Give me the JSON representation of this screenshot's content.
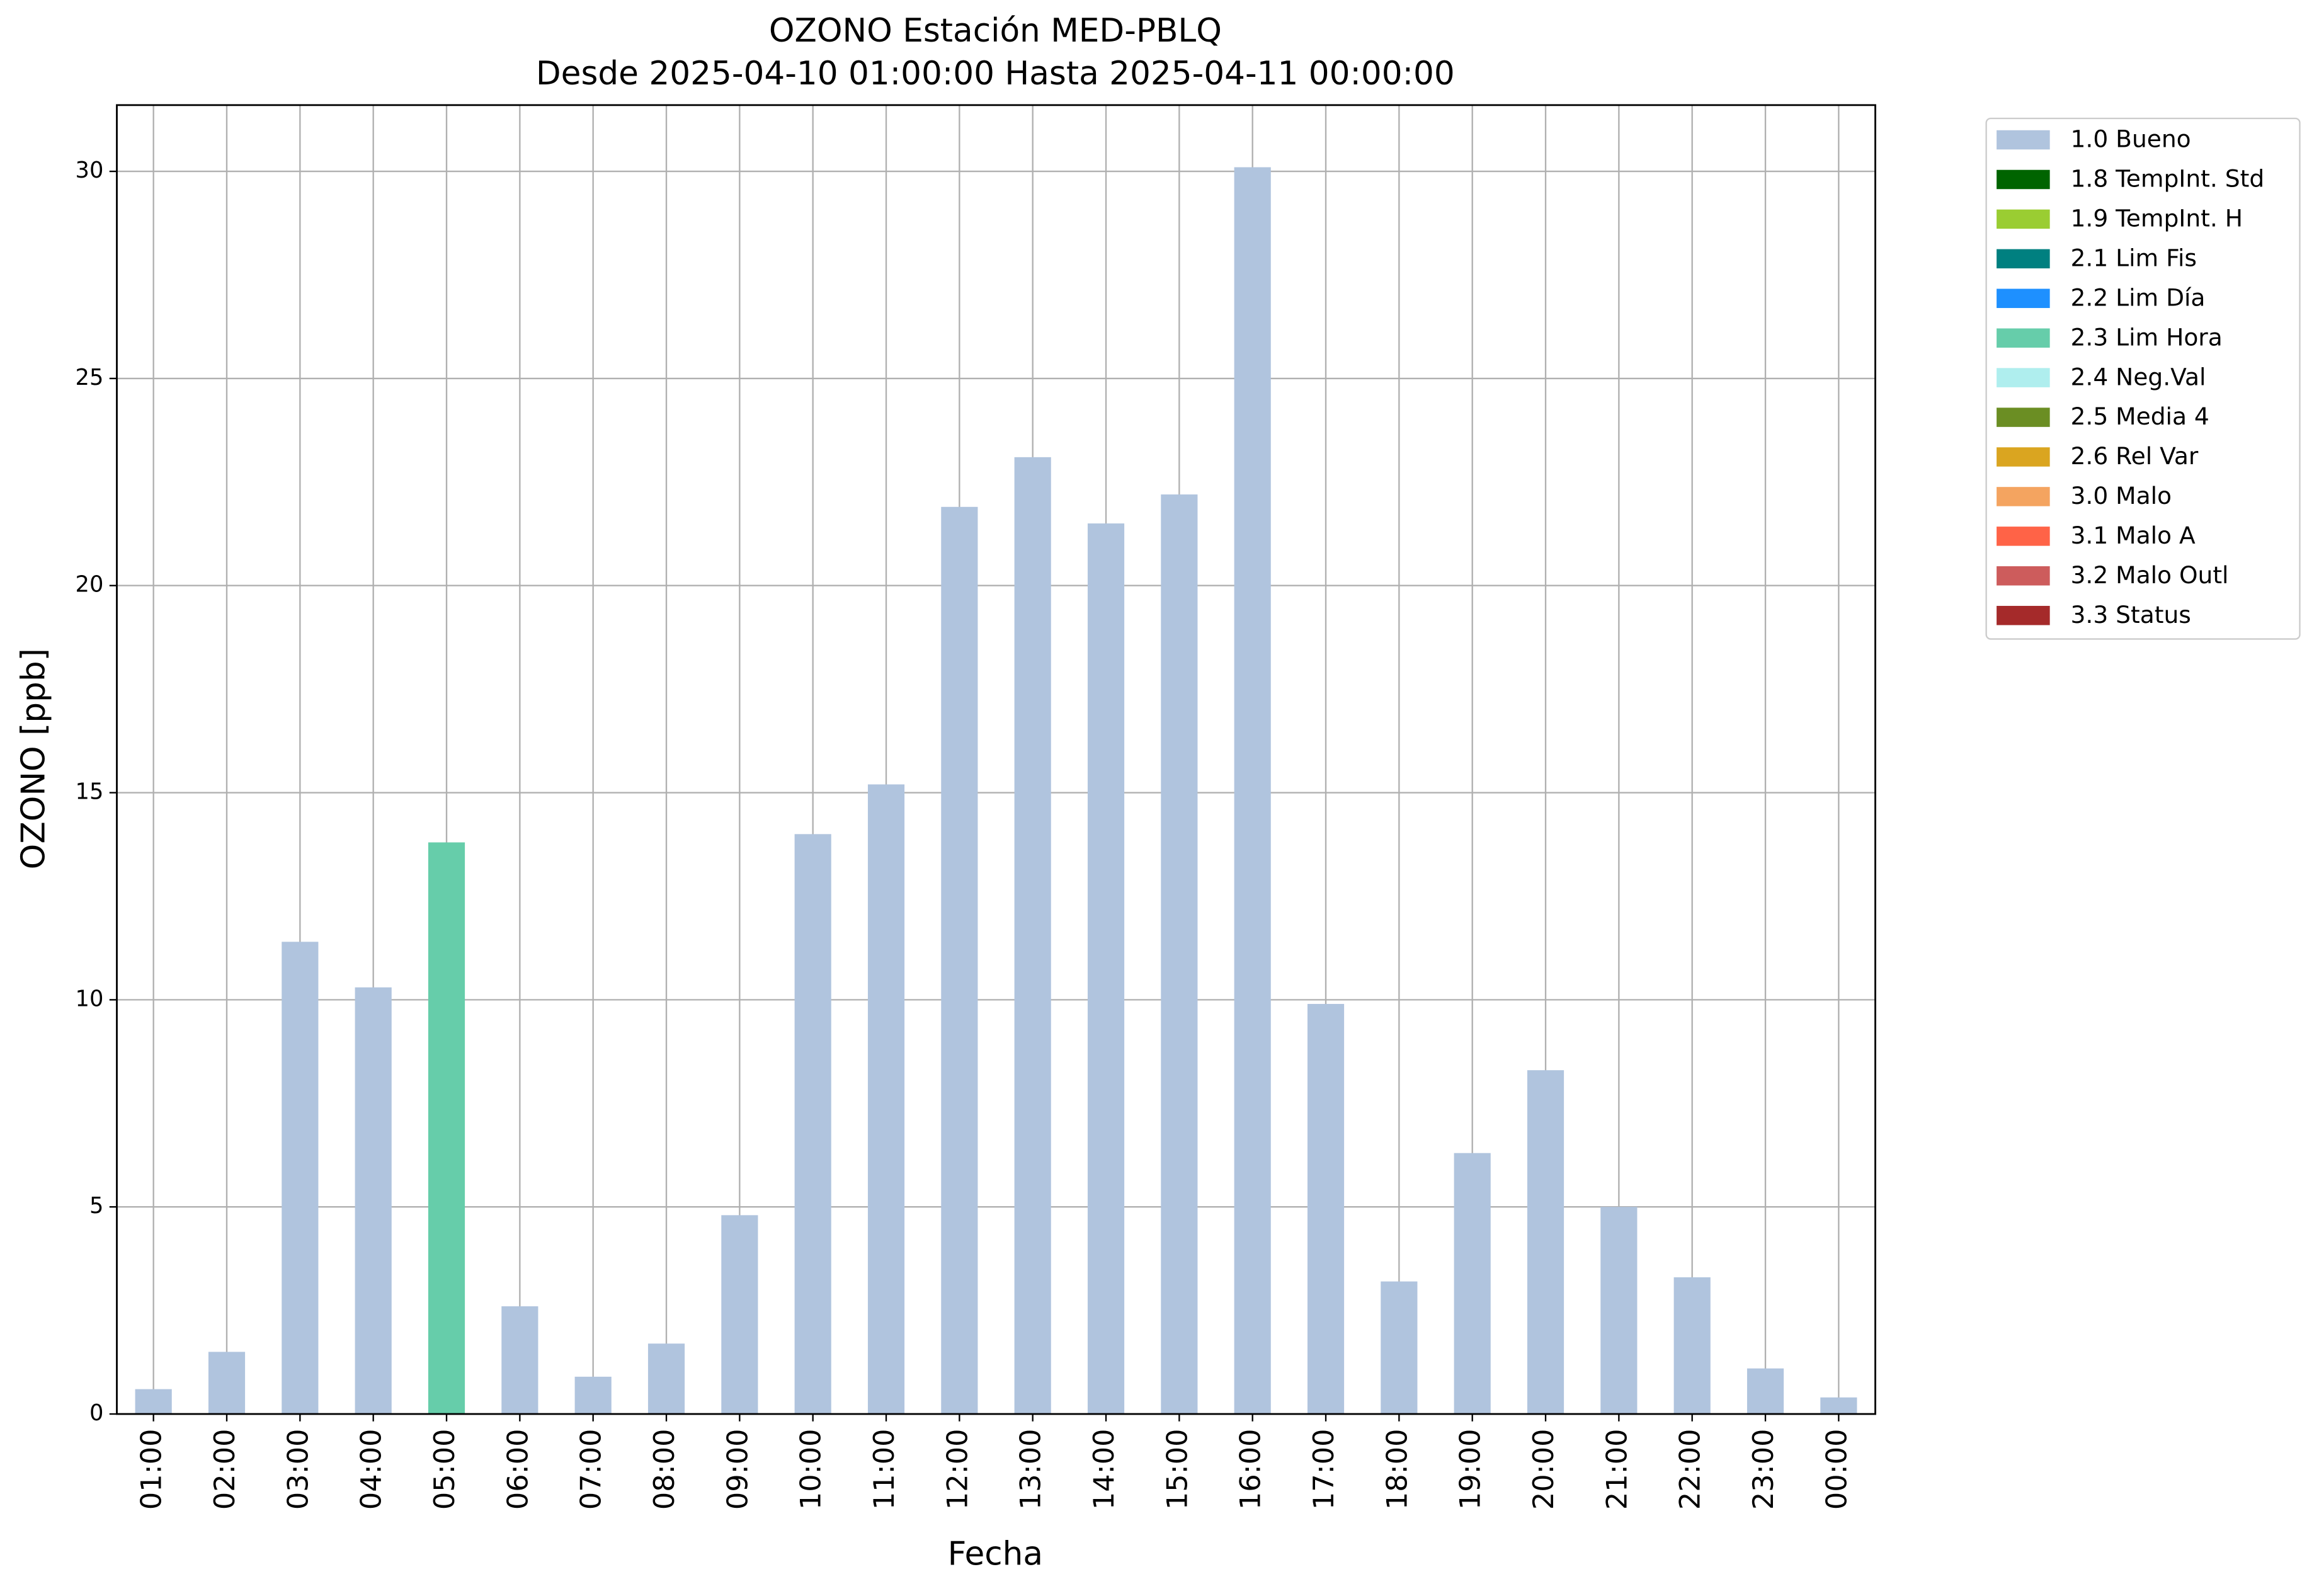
{
  "chart_data": {
    "type": "bar",
    "stacked": true,
    "title": "OZONO Estación MED-PBLQ",
    "subtitle": "Desde 2025-04-10 01:00:00 Hasta 2025-04-11 00:00:00",
    "x_label": "Fecha",
    "y_label": "OZONO [ppb]",
    "categories": [
      "01:00",
      "02:00",
      "03:00",
      "04:00",
      "05:00",
      "06:00",
      "07:00",
      "08:00",
      "09:00",
      "10:00",
      "11:00",
      "12:00",
      "13:00",
      "14:00",
      "15:00",
      "16:00",
      "17:00",
      "18:00",
      "19:00",
      "20:00",
      "21:00",
      "22:00",
      "23:00",
      "00:00"
    ],
    "series": [
      {
        "name": "1.0 Bueno",
        "color": "#b0c4de",
        "values": [
          0.6,
          1.5,
          11.4,
          10.3,
          null,
          2.6,
          0.9,
          1.7,
          4.8,
          14,
          15.2,
          21.9,
          23.1,
          21.5,
          22.2,
          30.1,
          9.9,
          3.2,
          6.3,
          8.3,
          5,
          3.3,
          1.1,
          0.4
        ]
      },
      {
        "name": "1.8 TempInt. Std",
        "color": "#006400",
        "values": [
          null,
          null,
          null,
          null,
          null,
          null,
          null,
          null,
          null,
          null,
          null,
          null,
          null,
          null,
          null,
          null,
          null,
          null,
          null,
          null,
          null,
          null,
          null,
          null
        ]
      },
      {
        "name": "1.9 TempInt. H",
        "color": "#9acd32",
        "values": [
          null,
          null,
          null,
          null,
          null,
          null,
          null,
          null,
          null,
          null,
          null,
          null,
          null,
          null,
          null,
          null,
          null,
          null,
          null,
          null,
          null,
          null,
          null,
          null
        ]
      },
      {
        "name": "2.1 Lim Fis",
        "color": "#008080",
        "values": [
          null,
          null,
          null,
          null,
          null,
          null,
          null,
          null,
          null,
          null,
          null,
          null,
          null,
          null,
          null,
          null,
          null,
          null,
          null,
          null,
          null,
          null,
          null,
          null
        ]
      },
      {
        "name": "2.2 Lim Día",
        "color": "#1e90ff",
        "values": [
          null,
          null,
          null,
          null,
          null,
          null,
          null,
          null,
          null,
          null,
          null,
          null,
          null,
          null,
          null,
          null,
          null,
          null,
          null,
          null,
          null,
          null,
          null,
          null
        ]
      },
      {
        "name": "2.3 Lim Hora",
        "color": "#66cdaa",
        "values": [
          null,
          null,
          null,
          null,
          13.8,
          null,
          null,
          null,
          null,
          null,
          null,
          null,
          null,
          null,
          null,
          null,
          null,
          null,
          null,
          null,
          null,
          null,
          null,
          null
        ]
      },
      {
        "name": "2.4 Neg.Val",
        "color": "#afeeee",
        "values": [
          null,
          null,
          null,
          null,
          null,
          null,
          null,
          null,
          null,
          null,
          null,
          null,
          null,
          null,
          null,
          null,
          null,
          null,
          null,
          null,
          null,
          null,
          null,
          null
        ]
      },
      {
        "name": "2.5 Media 4",
        "color": "#6b8e23",
        "values": [
          null,
          null,
          null,
          null,
          null,
          null,
          null,
          null,
          null,
          null,
          null,
          null,
          null,
          null,
          null,
          null,
          null,
          null,
          null,
          null,
          null,
          null,
          null,
          null
        ]
      },
      {
        "name": "2.6 Rel Var",
        "color": "#daa520",
        "values": [
          null,
          null,
          null,
          null,
          null,
          null,
          null,
          null,
          null,
          null,
          null,
          null,
          null,
          null,
          null,
          null,
          null,
          null,
          null,
          null,
          null,
          null,
          null,
          null
        ]
      },
      {
        "name": "3.0 Malo",
        "color": "#f4a460",
        "values": [
          null,
          null,
          null,
          null,
          null,
          null,
          null,
          null,
          null,
          null,
          null,
          null,
          null,
          null,
          null,
          null,
          null,
          null,
          null,
          null,
          null,
          null,
          null,
          null
        ]
      },
      {
        "name": "3.1 Malo A",
        "color": "#ff6347",
        "values": [
          null,
          null,
          null,
          null,
          null,
          null,
          null,
          null,
          null,
          null,
          null,
          null,
          null,
          null,
          null,
          null,
          null,
          null,
          null,
          null,
          null,
          null,
          null,
          null
        ]
      },
      {
        "name": "3.2 Malo Outl",
        "color": "#cd5c5c",
        "values": [
          null,
          null,
          null,
          null,
          null,
          null,
          null,
          null,
          null,
          null,
          null,
          null,
          null,
          null,
          null,
          null,
          null,
          null,
          null,
          null,
          null,
          null,
          null,
          null
        ]
      },
      {
        "name": "3.3 Status",
        "color": "#a52a2a",
        "values": [
          null,
          null,
          null,
          null,
          null,
          null,
          null,
          null,
          null,
          null,
          null,
          null,
          null,
          null,
          null,
          null,
          null,
          null,
          null,
          null,
          null,
          null,
          null,
          null
        ]
      }
    ],
    "ylim": [
      0,
      31.6
    ],
    "yticks": [
      0,
      5,
      10,
      15,
      20,
      25,
      30
    ],
    "grid": true,
    "legend": "outside-right"
  }
}
